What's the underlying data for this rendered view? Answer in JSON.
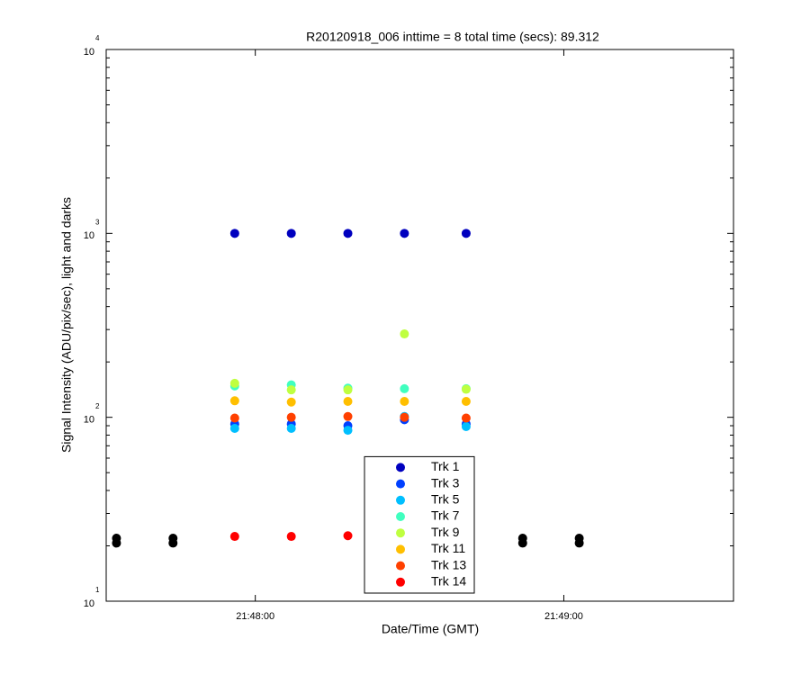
{
  "chart_data": {
    "type": "scatter",
    "title": "R20120918_006 inttime = 8 total time (secs): 89.312",
    "x_label": "Date/Time (GMT)",
    "y_label": "Signal Intensity (ADU/pix/sec), light and darks",
    "x": [
      "21:47:33",
      "21:47:44",
      "21:47:56",
      "21:48:07",
      "21:48:18",
      "21:48:29",
      "21:48:41",
      "21:48:52",
      "21:49:03"
    ],
    "xlim": [
      "21:47:31",
      "21:49:33"
    ],
    "xticks": [
      "21:48:00",
      "21:49:00"
    ],
    "ylim": [
      10,
      10000
    ],
    "yticks": [
      {
        "value": 10,
        "label": "10",
        "power": "1"
      },
      {
        "value": 100,
        "label": "10",
        "power": "2"
      },
      {
        "value": 1000,
        "label": "10",
        "power": "3"
      },
      {
        "value": 10000,
        "label": "10",
        "power": "4"
      }
    ],
    "y_scale": "log",
    "legend": "bottom-center",
    "series": [
      {
        "color": "#000000",
        "values": [
          22,
          22,
          null,
          null,
          null,
          null,
          null,
          22,
          22
        ]
      },
      {
        "color": "#000000",
        "values": [
          20.7,
          20.7,
          null,
          null,
          null,
          null,
          null,
          20.7,
          20.7
        ]
      },
      {
        "name": "Trk 1",
        "color": "#0000bf",
        "values": [
          null,
          null,
          1000,
          1000,
          1000,
          1000,
          1000,
          null,
          null
        ]
      },
      {
        "name": "Trk 3",
        "color": "#0040ff",
        "values": [
          null,
          null,
          92,
          92,
          90,
          97,
          92,
          null,
          null
        ]
      },
      {
        "name": "Trk 5",
        "color": "#00bfff",
        "values": [
          null,
          null,
          87,
          87,
          85,
          101,
          89,
          null,
          null
        ]
      },
      {
        "name": "Trk 7",
        "color": "#40ffbf",
        "values": [
          null,
          null,
          148,
          150,
          144,
          143,
          143,
          null,
          null
        ]
      },
      {
        "name": "Trk 9",
        "color": "#bfff40",
        "values": [
          null,
          null,
          153,
          141,
          141,
          284,
          142,
          null,
          null
        ]
      },
      {
        "name": "Trk 11",
        "color": "#ffbf00",
        "values": [
          null,
          null,
          123,
          121,
          122,
          122,
          122,
          null,
          null
        ]
      },
      {
        "name": "Trk 13",
        "color": "#ff4000",
        "values": [
          null,
          null,
          99,
          100,
          101,
          100,
          99,
          null,
          null
        ]
      },
      {
        "name": "Trk 14",
        "color": "#ff0000",
        "values": [
          null,
          null,
          22.5,
          22.5,
          22.7,
          null,
          null,
          null,
          null
        ]
      }
    ]
  }
}
